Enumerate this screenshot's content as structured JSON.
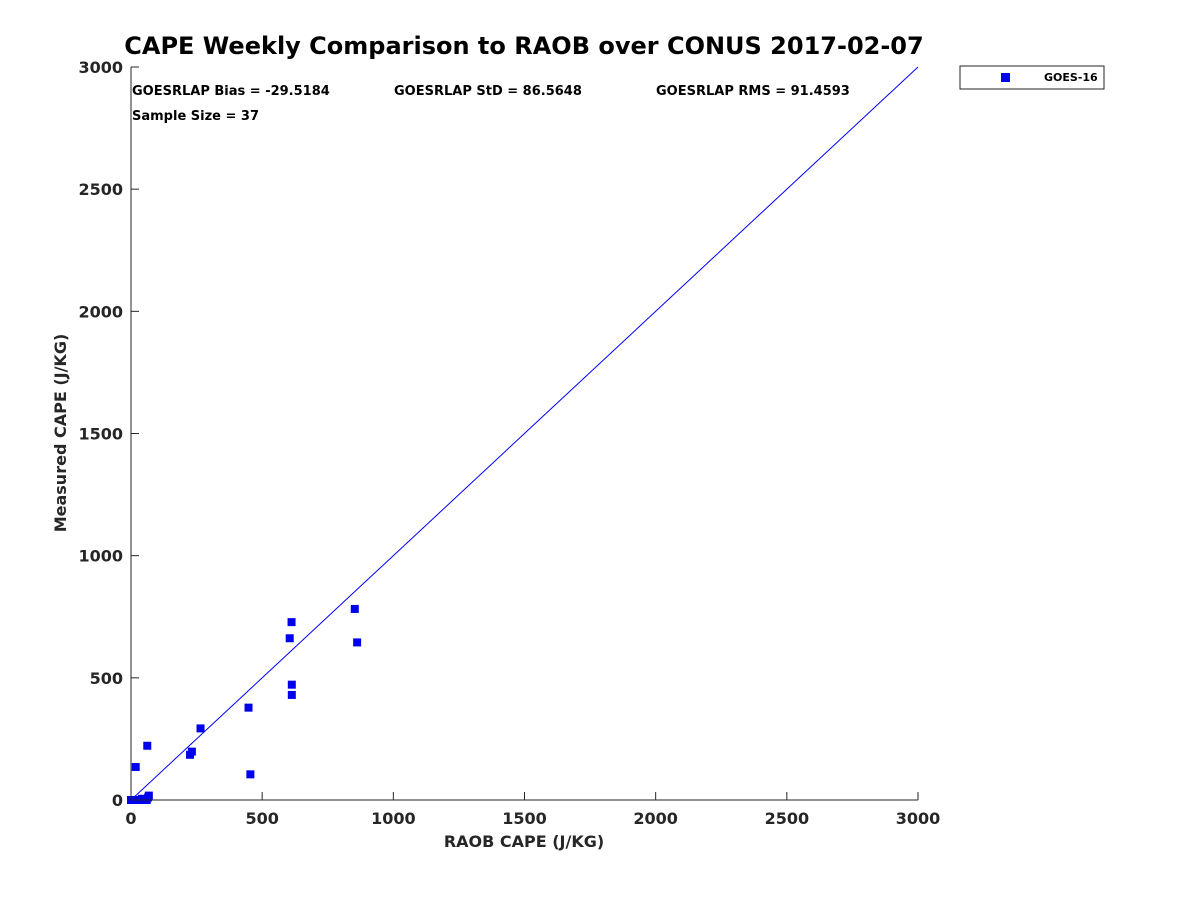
{
  "chart_data": {
    "type": "scatter",
    "title": "CAPE Weekly Comparison to RAOB over CONUS 2017-02-07",
    "xlabel": "RAOB CAPE (J/KG)",
    "ylabel": "Measured CAPE (J/KG)",
    "xlim": [
      0,
      3000
    ],
    "ylim": [
      0,
      3000
    ],
    "xticks": [
      "0",
      "500",
      "1000",
      "1500",
      "2000",
      "2500",
      "3000"
    ],
    "yticks": [
      "0",
      "500",
      "1000",
      "1500",
      "2000",
      "2500",
      "3000"
    ],
    "grid": false,
    "legend_position": "outside-top-right",
    "reference_line": {
      "x": [
        0,
        3000
      ],
      "y": [
        0,
        3000
      ],
      "color": "#0000ff"
    },
    "annotations": {
      "bias": "GOESRLAP Bias = -29.5184",
      "std": "GOESRLAP StD = 86.5648",
      "rms": "GOESRLAP RMS = 91.4593",
      "sample": "Sample Size = 37"
    },
    "series": [
      {
        "name": "GOES-16",
        "color": "#0000ee",
        "marker": "square",
        "points": [
          [
            0,
            0
          ],
          [
            3,
            0
          ],
          [
            5,
            0
          ],
          [
            8,
            0
          ],
          [
            10,
            0
          ],
          [
            15,
            0
          ],
          [
            18,
            0
          ],
          [
            22,
            0
          ],
          [
            25,
            0
          ],
          [
            28,
            0
          ],
          [
            32,
            0
          ],
          [
            35,
            0
          ],
          [
            40,
            0
          ],
          [
            45,
            0
          ],
          [
            50,
            0
          ],
          [
            55,
            0
          ],
          [
            60,
            0
          ],
          [
            30,
            0
          ],
          [
            20,
            0
          ],
          [
            12,
            0
          ],
          [
            18,
            135
          ],
          [
            62,
            222
          ],
          [
            68,
            18
          ],
          [
            225,
            185
          ],
          [
            232,
            198
          ],
          [
            265,
            293
          ],
          [
            448,
            378
          ],
          [
            455,
            105
          ],
          [
            605,
            662
          ],
          [
            612,
            728
          ],
          [
            613,
            472
          ],
          [
            613,
            430
          ],
          [
            853,
            782
          ],
          [
            862,
            645
          ],
          [
            42,
            5
          ],
          [
            52,
            3
          ],
          [
            65,
            10
          ]
        ]
      }
    ]
  }
}
